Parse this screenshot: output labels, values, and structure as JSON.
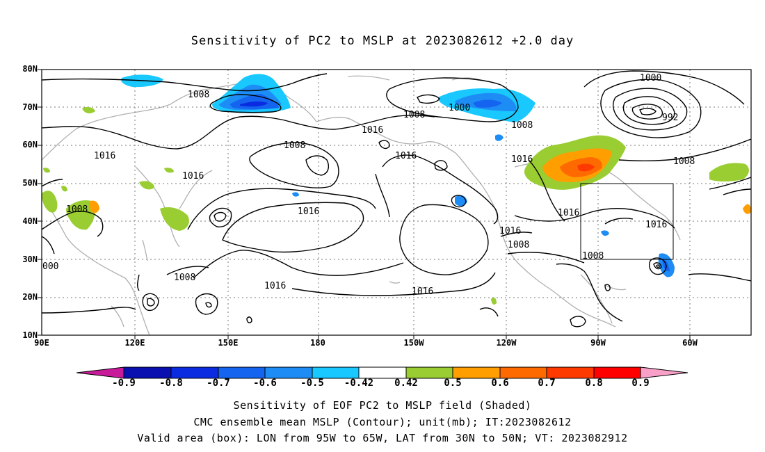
{
  "title": "Sensitivity of PC2 to MSLP at 2023082612 +2.0 day",
  "lat_labels": [
    "80N",
    "70N",
    "60N",
    "50N",
    "40N",
    "30N",
    "20N",
    "10N"
  ],
  "lon_labels": [
    "90E",
    "120E",
    "150E",
    "180",
    "150W",
    "120W",
    "90W",
    "60W"
  ],
  "colorbar": {
    "labels": [
      "-0.9",
      "-0.8",
      "-0.7",
      "-0.6",
      "-0.5",
      "-0.42",
      "0.42",
      "0.5",
      "0.6",
      "0.7",
      "0.8",
      "0.9"
    ],
    "colors": [
      "#c81b9a",
      "#0a10b0",
      "#0a2be0",
      "#1464f0",
      "#1e8cf5",
      "#18c8ff",
      "#ffffff",
      "#9acd32",
      "#ff9e00",
      "#ff6a00",
      "#ff3a00",
      "#ff0000",
      "#f8a0c8"
    ]
  },
  "contour_labels": [
    {
      "text": "1008"
    },
    {
      "text": "1000"
    },
    {
      "text": "1000"
    },
    {
      "text": "992"
    },
    {
      "text": "1008"
    },
    {
      "text": "1008"
    },
    {
      "text": "1016"
    },
    {
      "text": "1016"
    },
    {
      "text": "1008"
    },
    {
      "text": "1016"
    },
    {
      "text": "1016"
    },
    {
      "text": "1016"
    },
    {
      "text": "1008"
    },
    {
      "text": "1016"
    },
    {
      "text": "1008"
    },
    {
      "text": "1016"
    },
    {
      "text": "1016"
    },
    {
      "text": "1008"
    },
    {
      "text": "1016"
    },
    {
      "text": "1008"
    },
    {
      "text": "000"
    },
    {
      "text": "1008"
    },
    {
      "text": "1016"
    },
    {
      "text": "1016"
    }
  ],
  "captions": {
    "line1": "Sensitivity of EOF PC2 to MSLP field (Shaded)",
    "line2": "CMC ensemble mean MSLP (Contour); unit(mb); IT:2023082612",
    "line3": "Valid area (box): LON from 95W to 65W, LAT from 30N to 50N; VT: 2023082912"
  }
}
